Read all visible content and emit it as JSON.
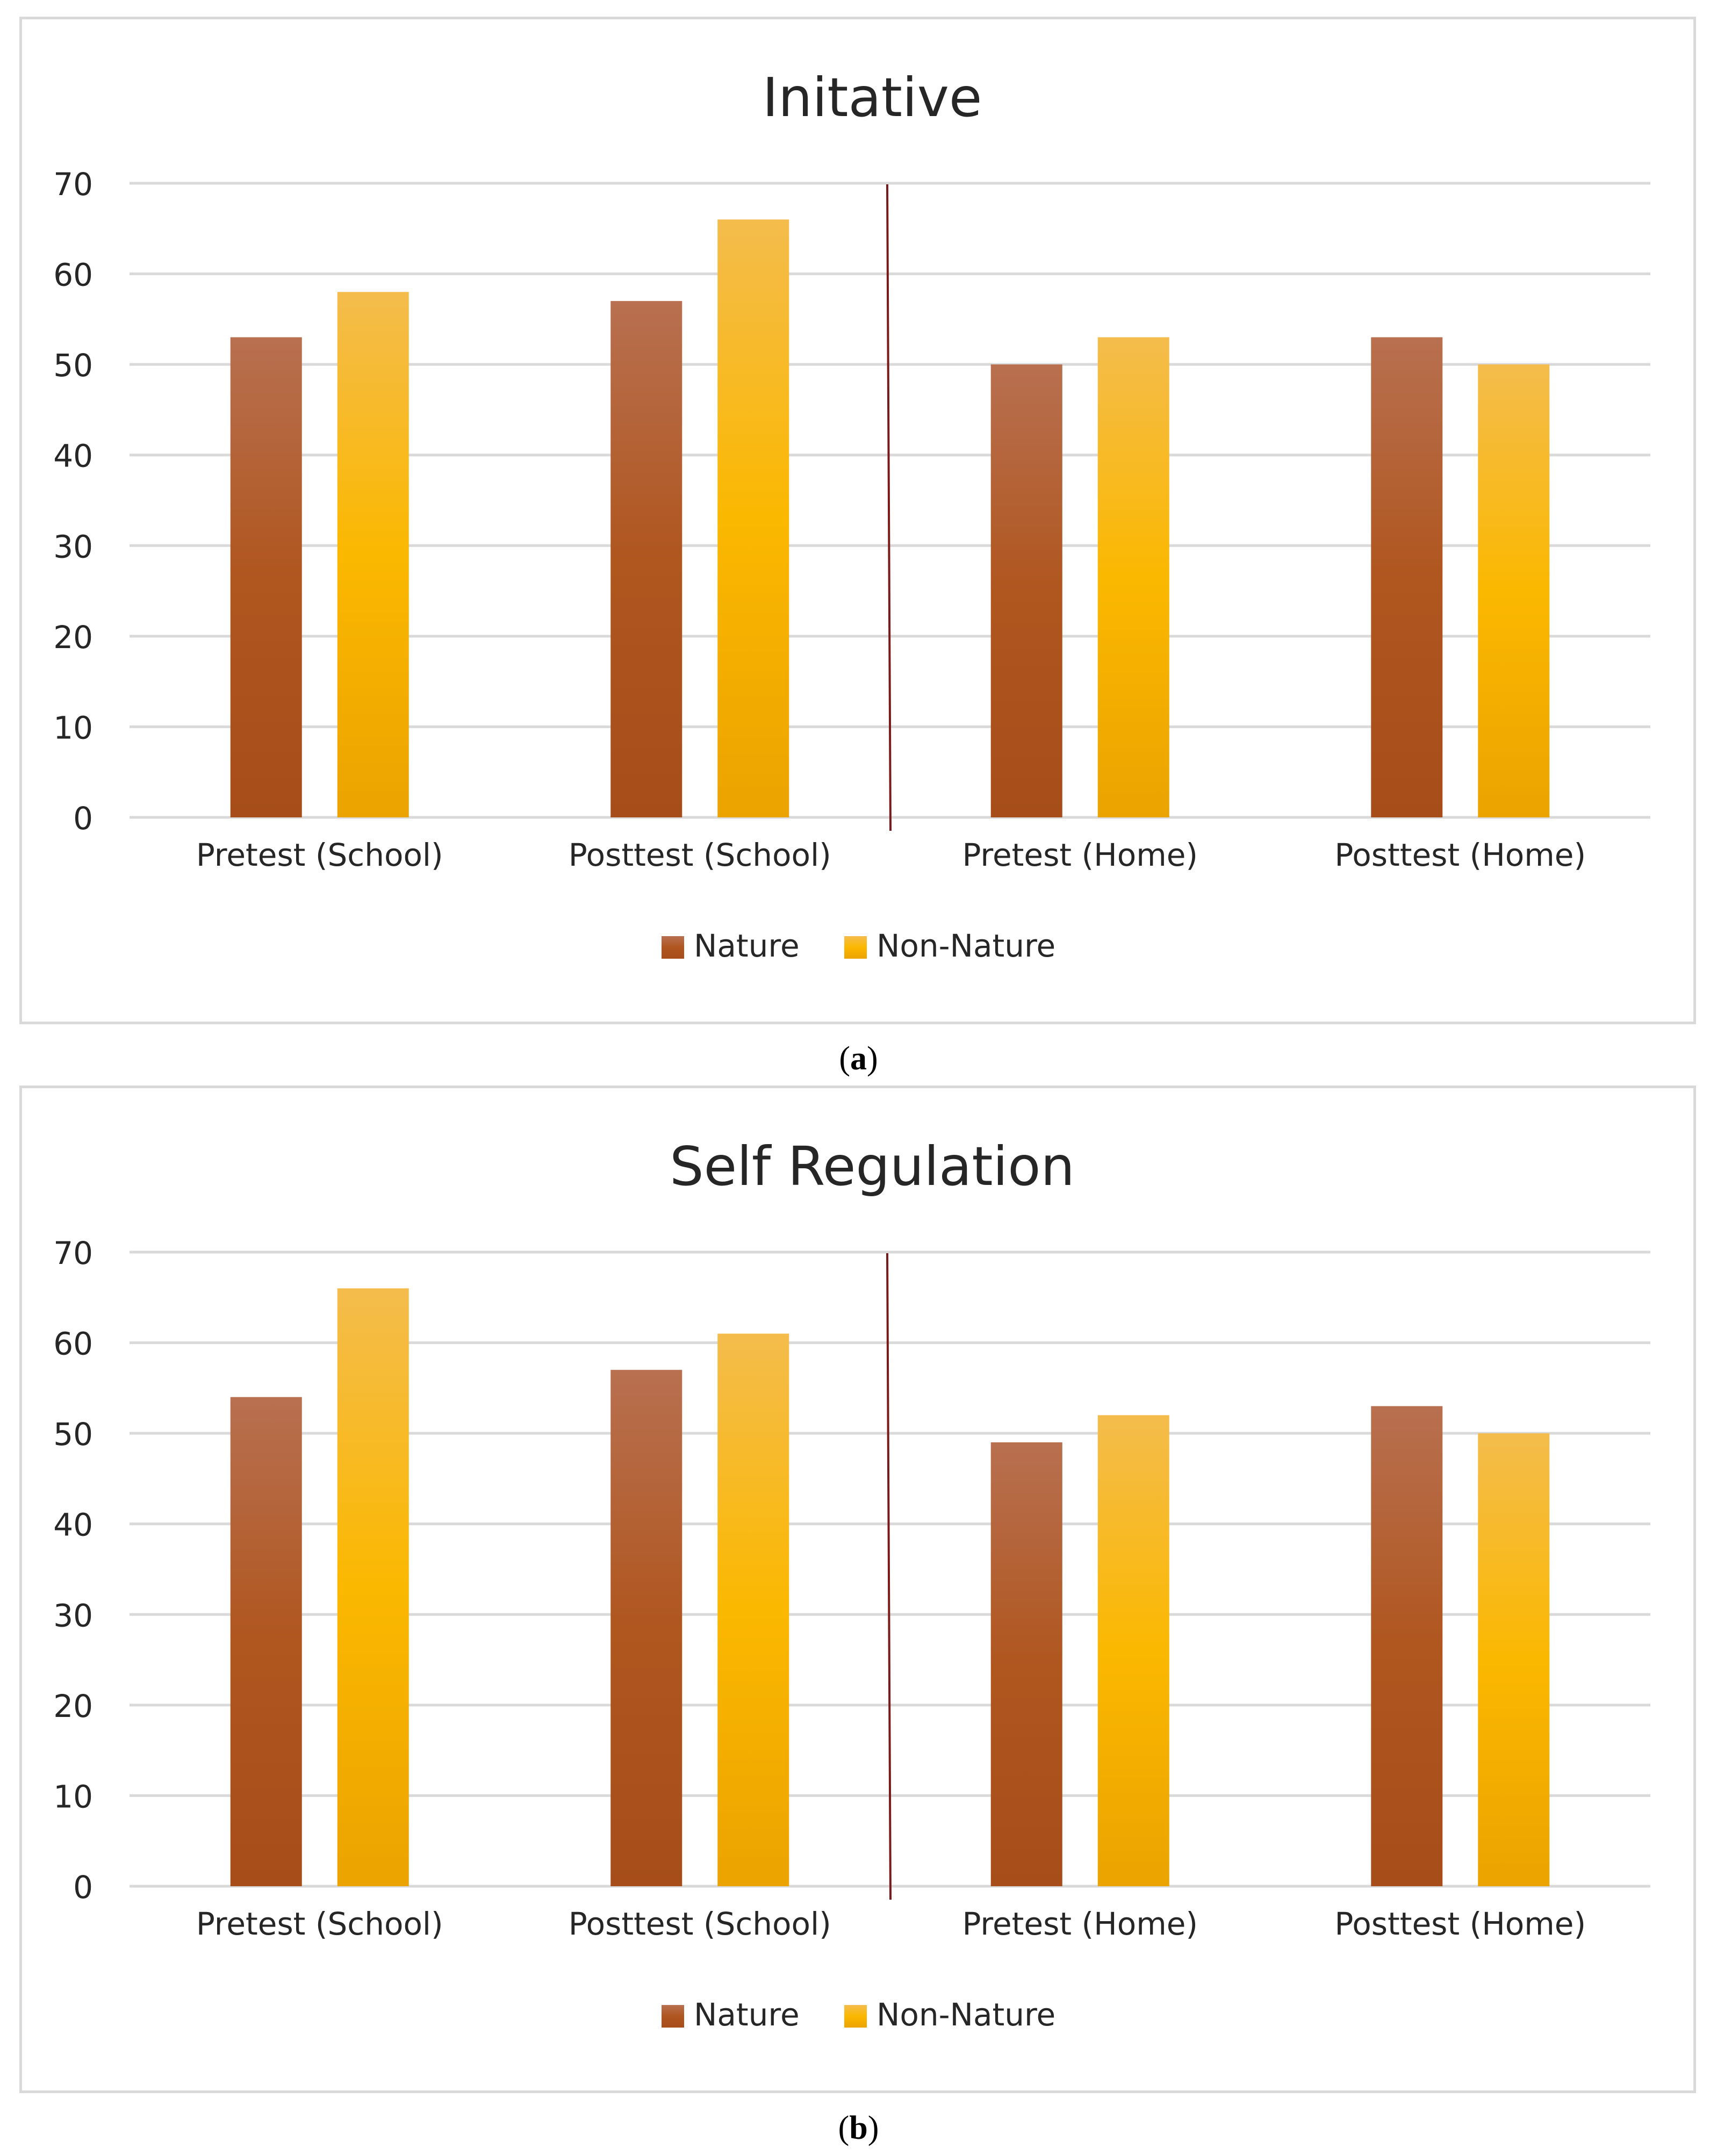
{
  "chart_data": [
    {
      "type": "bar",
      "title": "Initative",
      "categories": [
        "Pretest (School)",
        "Posttest (School)",
        "Pretest (Home)",
        "Posttest (Home)"
      ],
      "series": [
        {
          "name": "Nature",
          "values": [
            53,
            57,
            50,
            53
          ]
        },
        {
          "name": "Non-Nature",
          "values": [
            58,
            66,
            53,
            50
          ]
        }
      ],
      "ylim": [
        0,
        70
      ],
      "yticks": [
        0,
        10,
        20,
        30,
        40,
        50,
        60,
        70
      ],
      "xlabel": "",
      "ylabel": "",
      "grid": true,
      "legend": "bottom-center",
      "divider_between_categories": [
        1,
        2
      ],
      "caption_label": "a"
    },
    {
      "type": "bar",
      "title": "Self Regulation",
      "categories": [
        "Pretest (School)",
        "Posttest (School)",
        "Pretest (Home)",
        "Posttest (Home)"
      ],
      "series": [
        {
          "name": "Nature",
          "values": [
            54,
            57,
            49,
            53
          ]
        },
        {
          "name": "Non-Nature",
          "values": [
            66,
            61,
            52,
            50
          ]
        }
      ],
      "ylim": [
        0,
        70
      ],
      "yticks": [
        0,
        10,
        20,
        30,
        40,
        50,
        60,
        70
      ],
      "xlabel": "",
      "ylabel": "",
      "grid": true,
      "legend": "bottom-center",
      "divider_between_categories": [
        1,
        2
      ],
      "caption_label": "b"
    }
  ],
  "captions": {
    "a": {
      "open": "(",
      "label": "a",
      "close": ")"
    },
    "b": {
      "open": "(",
      "label": "b",
      "close": ")"
    }
  },
  "colors": {
    "nature_top": "#b87050",
    "nature_mid": "#b0561f",
    "nature_bottom": "#a64d1a",
    "nonnature_top": "#f4bc4c",
    "nonnature_mid": "#fbb800",
    "nonnature_bottom": "#eba300",
    "grid": "#d9d9d9",
    "divider": "#7a1a1a"
  }
}
